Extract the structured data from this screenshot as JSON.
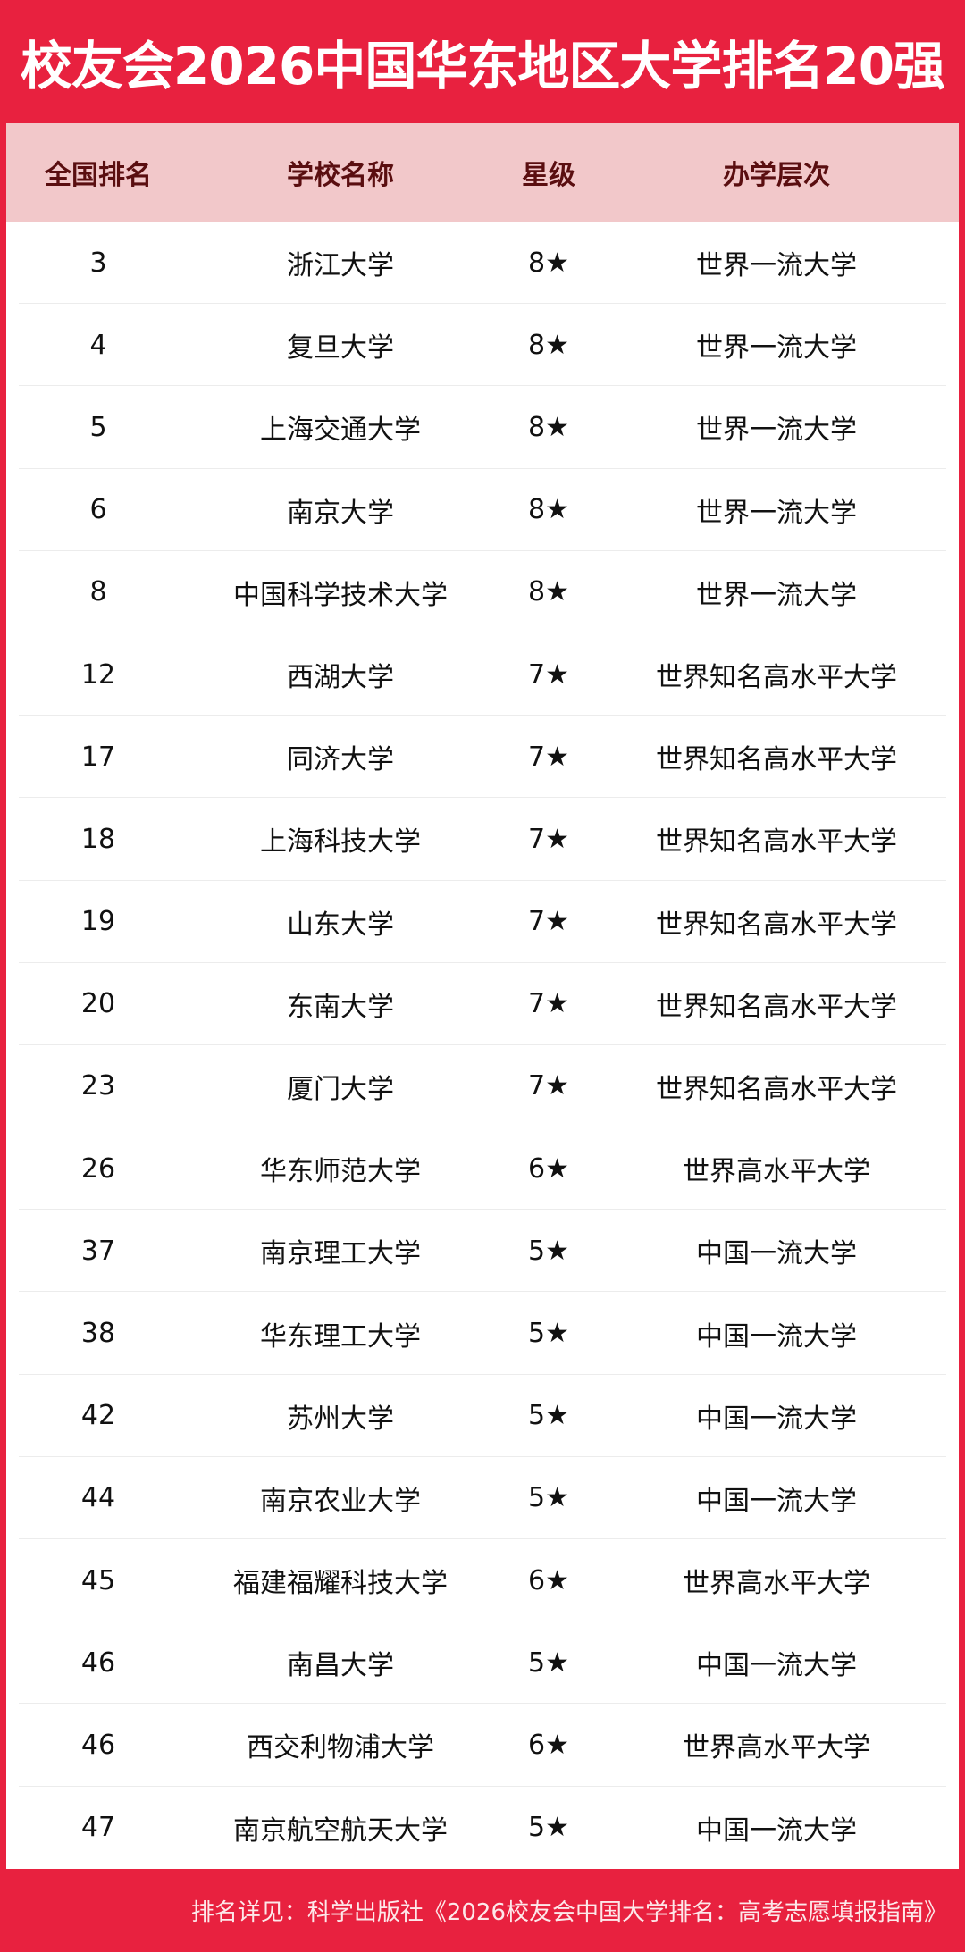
{
  "title": "校友会2026中国华东地区大学排名20强",
  "colors": {
    "brand_red": "#e8213f",
    "header_bg": "#f2c8ca",
    "header_text": "#5a0e10"
  },
  "columns": [
    "全国排名",
    "学校名称",
    "星级",
    "办学层次"
  ],
  "rows": [
    [
      "3",
      "浙江大学",
      "8★",
      "世界一流大学"
    ],
    [
      "4",
      "复旦大学",
      "8★",
      "世界一流大学"
    ],
    [
      "5",
      "上海交通大学",
      "8★",
      "世界一流大学"
    ],
    [
      "6",
      "南京大学",
      "8★",
      "世界一流大学"
    ],
    [
      "8",
      "中国科学技术大学",
      "8★",
      "世界一流大学"
    ],
    [
      "12",
      "西湖大学",
      "7★",
      "世界知名高水平大学"
    ],
    [
      "17",
      "同济大学",
      "7★",
      "世界知名高水平大学"
    ],
    [
      "18",
      "上海科技大学",
      "7★",
      "世界知名高水平大学"
    ],
    [
      "19",
      "山东大学",
      "7★",
      "世界知名高水平大学"
    ],
    [
      "20",
      "东南大学",
      "7★",
      "世界知名高水平大学"
    ],
    [
      "23",
      "厦门大学",
      "7★",
      "世界知名高水平大学"
    ],
    [
      "26",
      "华东师范大学",
      "6★",
      "世界高水平大学"
    ],
    [
      "37",
      "南京理工大学",
      "5★",
      "中国一流大学"
    ],
    [
      "38",
      "华东理工大学",
      "5★",
      "中国一流大学"
    ],
    [
      "42",
      "苏州大学",
      "5★",
      "中国一流大学"
    ],
    [
      "44",
      "南京农业大学",
      "5★",
      "中国一流大学"
    ],
    [
      "45",
      "福建福耀科技大学",
      "6★",
      "世界高水平大学"
    ],
    [
      "46",
      "南昌大学",
      "5★",
      "中国一流大学"
    ],
    [
      "46",
      "西交利物浦大学",
      "6★",
      "世界高水平大学"
    ],
    [
      "47",
      "南京航空航天大学",
      "5★",
      "中国一流大学"
    ]
  ],
  "footer": "排名详见：科学出版社《2026校友会中国大学排名：高考志愿填报指南》"
}
